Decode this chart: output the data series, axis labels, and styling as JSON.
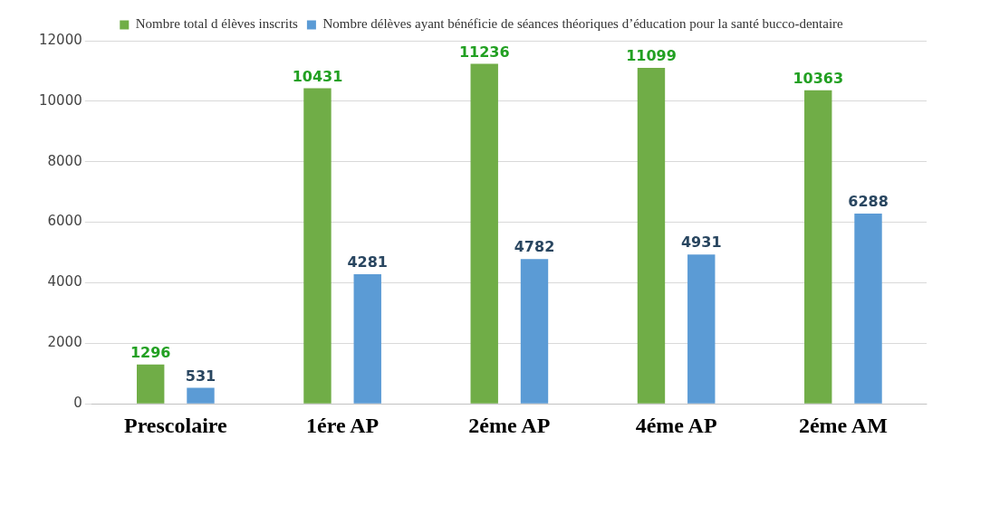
{
  "chart_data": {
    "type": "bar",
    "categories": [
      "Prescolaire",
      "1ére AP",
      "2éme AP",
      "4éme AP",
      "2éme AM"
    ],
    "series": [
      {
        "name": "Nombre total d élèves inscrits",
        "color": "#70ad47",
        "values": [
          1296,
          10431,
          11236,
          11099,
          10363
        ]
      },
      {
        "name": "Nombre délèves ayant bénéficie de séances théoriques d’éducation pour la santé bucco-dentaire",
        "color": "#5b9bd5",
        "values": [
          531,
          4281,
          4782,
          4931,
          6288
        ]
      }
    ],
    "ylim": [
      0,
      12000
    ],
    "yticks": [
      0,
      2000,
      4000,
      6000,
      8000,
      10000,
      12000
    ],
    "grid": "y",
    "legend": "top",
    "data_labels": true
  }
}
